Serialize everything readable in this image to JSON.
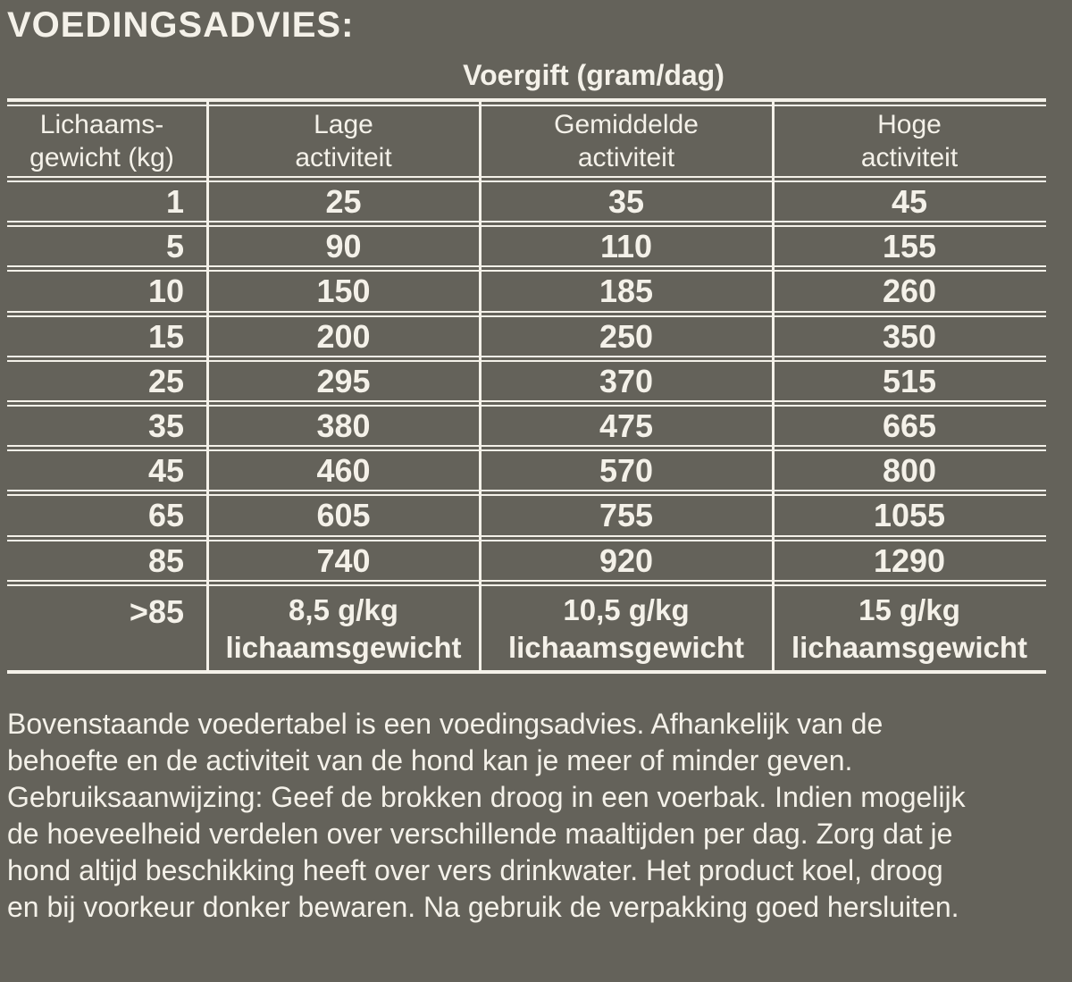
{
  "page": {
    "title": "VOEDINGSADVIES:",
    "background_color": "#64625a",
    "ink_color": "#f4f1e9"
  },
  "table": {
    "caption": "Voergift (gram/dag)",
    "headers": [
      "Lichaams-\ngewicht (kg)",
      "Lage\nactiviteit",
      "Gemiddelde\nactiviteit",
      "Hoge\nactiviteit"
    ],
    "rows": [
      [
        "1",
        "25",
        "35",
        "45"
      ],
      [
        "5",
        "90",
        "110",
        "155"
      ],
      [
        "10",
        "150",
        "185",
        "260"
      ],
      [
        "15",
        "200",
        "250",
        "350"
      ],
      [
        "25",
        "295",
        "370",
        "515"
      ],
      [
        "35",
        "380",
        "475",
        "665"
      ],
      [
        "45",
        "460",
        "570",
        "800"
      ],
      [
        "65",
        "605",
        "755",
        "1055"
      ],
      [
        "85",
        "740",
        "920",
        "1290"
      ],
      [
        ">85",
        "8,5 g/kg\nlichaamsgewicht",
        "10,5 g/kg\nlichaamsgewicht",
        "15 g/kg\nlichaamsgewicht"
      ]
    ]
  },
  "footer": {
    "text": "Bovenstaande voedertabel is een voedingsadvies. Afhankelijk van de\nbehoefte en de activiteit van de hond kan je meer of minder geven.\nGebruiksaanwijzing: Geef de brokken droog in een voerbak. Indien mogelijk\nde hoeveelheid verdelen over verschillende maaltijden per dag. Zorg dat je\nhond altijd beschikking heeft over vers drinkwater. Het product koel, droog\nen bij voorkeur donker bewaren. Na gebruik de verpakking goed hersluiten."
  }
}
